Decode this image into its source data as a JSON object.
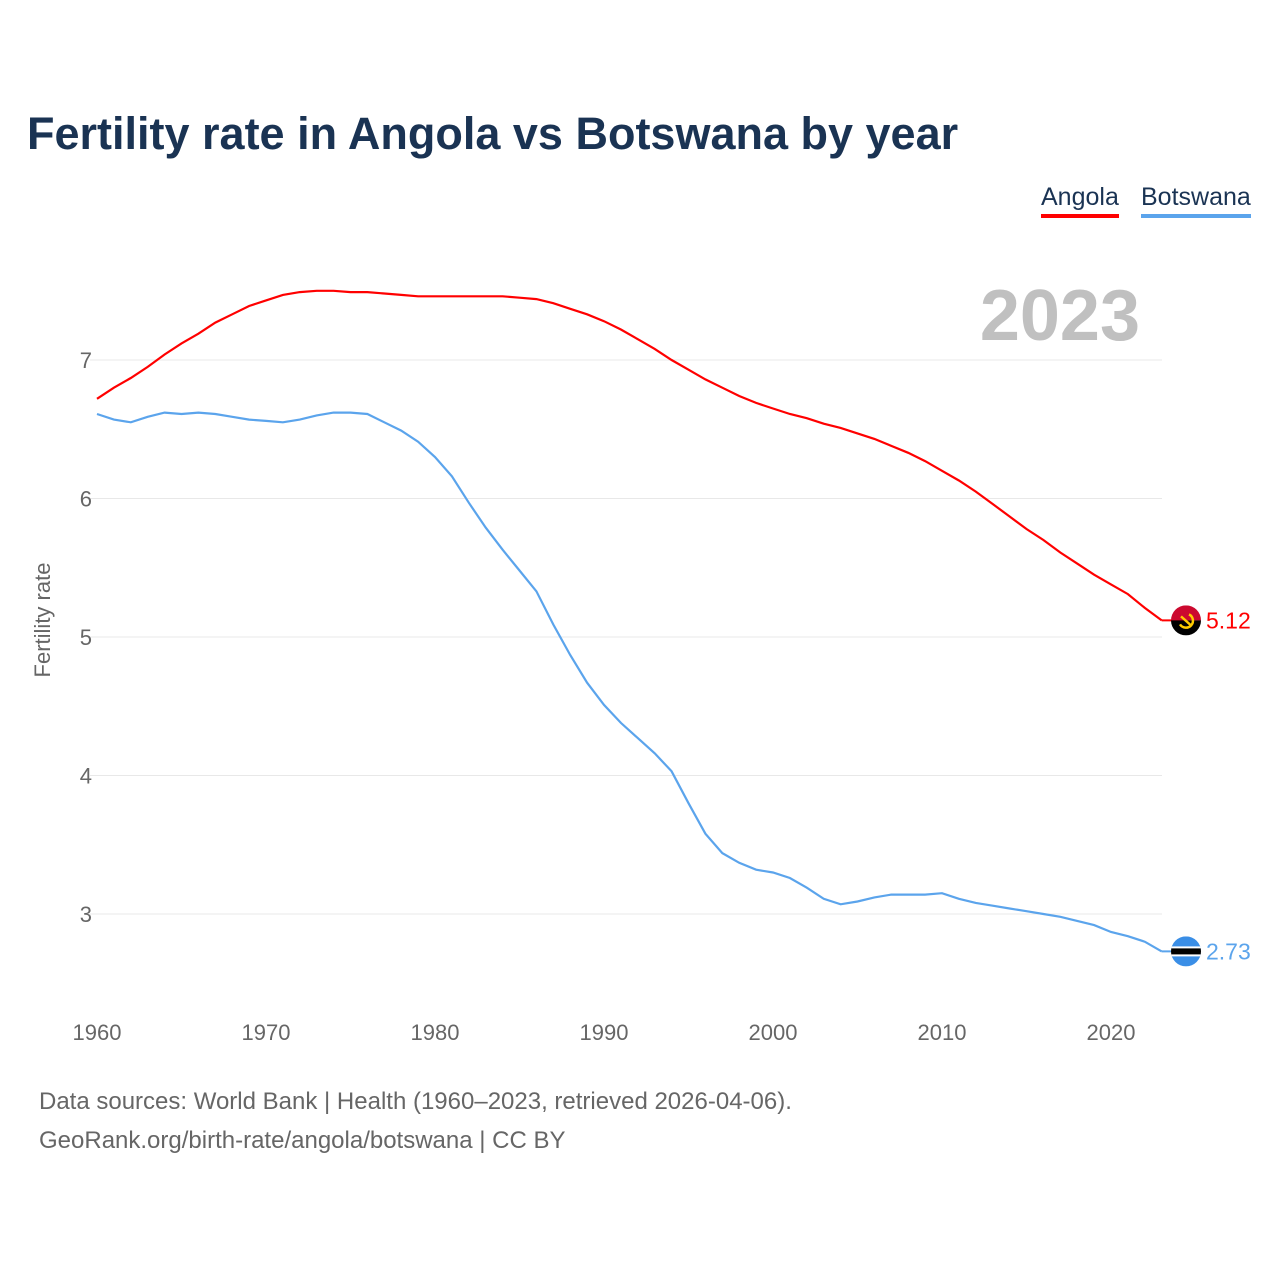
{
  "chart_data": {
    "type": "line",
    "title": "Fertility rate in Angola vs Botswana by year",
    "xlabel": "",
    "ylabel": "Fertility rate",
    "xlim": [
      1960,
      2023
    ],
    "ylim": [
      2.5,
      7.7
    ],
    "xticks": [
      1960,
      1970,
      1980,
      1990,
      2000,
      2010,
      2020
    ],
    "yticks": [
      3,
      4,
      5,
      6,
      7
    ],
    "grid": true,
    "legend_position": "top-right",
    "year_label": "2023",
    "x": [
      1960,
      1961,
      1962,
      1963,
      1964,
      1965,
      1966,
      1967,
      1968,
      1969,
      1970,
      1971,
      1972,
      1973,
      1974,
      1975,
      1976,
      1977,
      1978,
      1979,
      1980,
      1981,
      1982,
      1983,
      1984,
      1985,
      1986,
      1987,
      1988,
      1989,
      1990,
      1991,
      1992,
      1993,
      1994,
      1995,
      1996,
      1997,
      1998,
      1999,
      2000,
      2001,
      2002,
      2003,
      2004,
      2005,
      2006,
      2007,
      2008,
      2009,
      2010,
      2011,
      2012,
      2013,
      2014,
      2015,
      2016,
      2017,
      2018,
      2019,
      2020,
      2021,
      2022,
      2023
    ],
    "series": [
      {
        "name": "Angola",
        "color": "#ff0000",
        "end_label": "5.12",
        "values": [
          6.72,
          6.8,
          6.87,
          6.95,
          7.04,
          7.12,
          7.19,
          7.27,
          7.33,
          7.39,
          7.43,
          7.47,
          7.49,
          7.5,
          7.5,
          7.49,
          7.49,
          7.48,
          7.47,
          7.46,
          7.46,
          7.46,
          7.46,
          7.46,
          7.46,
          7.45,
          7.44,
          7.41,
          7.37,
          7.33,
          7.28,
          7.22,
          7.15,
          7.08,
          7.0,
          6.93,
          6.86,
          6.8,
          6.74,
          6.69,
          6.65,
          6.61,
          6.58,
          6.54,
          6.51,
          6.47,
          6.43,
          6.38,
          6.33,
          6.27,
          6.2,
          6.13,
          6.05,
          5.96,
          5.87,
          5.78,
          5.7,
          5.61,
          5.53,
          5.45,
          5.38,
          5.31,
          5.21,
          5.12
        ]
      },
      {
        "name": "Botswana",
        "color": "#5ba4ec",
        "end_label": "2.73",
        "values": [
          6.61,
          6.57,
          6.55,
          6.59,
          6.62,
          6.61,
          6.62,
          6.61,
          6.59,
          6.57,
          6.56,
          6.55,
          6.57,
          6.6,
          6.62,
          6.62,
          6.61,
          6.55,
          6.49,
          6.41,
          6.3,
          6.16,
          5.97,
          5.79,
          5.63,
          5.48,
          5.33,
          5.09,
          4.87,
          4.67,
          4.51,
          4.38,
          4.27,
          4.16,
          4.03,
          3.8,
          3.58,
          3.44,
          3.37,
          3.32,
          3.3,
          3.26,
          3.19,
          3.11,
          3.07,
          3.09,
          3.12,
          3.14,
          3.14,
          3.14,
          3.15,
          3.11,
          3.08,
          3.06,
          3.04,
          3.02,
          3.0,
          2.98,
          2.95,
          2.92,
          2.87,
          2.84,
          2.8,
          2.73
        ]
      }
    ]
  },
  "footer": {
    "line1": "Data sources: World Bank | Health (1960–2023, retrieved 2026-04-06).",
    "line2": "GeoRank.org/birth-rate/angola/botswana | CC BY"
  }
}
